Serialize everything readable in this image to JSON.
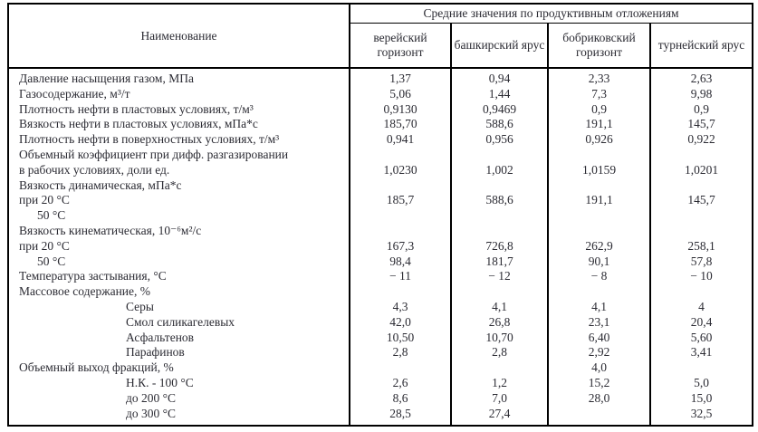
{
  "table": {
    "name_header": "Наименование",
    "group_header": "Средние значения по продуктивным отложениям",
    "columns": [
      "верейский горизонт",
      "башкирский ярус",
      "бобриковский горизонт",
      "турнейский ярус"
    ],
    "rows": [
      {
        "label": "Давление насыщения газом, МПа",
        "indent": 0,
        "values": [
          "1,37",
          "0,94",
          "2,33",
          "2,63"
        ]
      },
      {
        "label": "Газосодержание, м³/т",
        "indent": 0,
        "values": [
          "5,06",
          "1,44",
          "7,3",
          "9,98"
        ]
      },
      {
        "label": "Плотность нефти в пластовых условиях, т/м³",
        "indent": 0,
        "values": [
          "0,9130",
          "0,9469",
          "0,9",
          "0,9"
        ]
      },
      {
        "label": "Вязкость нефти в пластовых условиях, мПа*с",
        "indent": 0,
        "values": [
          "185,70",
          "588,6",
          "191,1",
          "145,7"
        ]
      },
      {
        "label": "Плотность нефти в поверхностных условиях, т/м³",
        "indent": 0,
        "values": [
          "0,941",
          "0,956",
          "0,926",
          "0,922"
        ]
      },
      {
        "label": "Объемный коэффициент при дифф. разгазировании",
        "indent": 0,
        "values": [
          "",
          "",
          "",
          ""
        ]
      },
      {
        "label": "в рабочих условиях, доли ед.",
        "indent": 0,
        "values": [
          "1,0230",
          "1,002",
          "1,0159",
          "1,0201"
        ]
      },
      {
        "label": "Вязкость динамическая, мПа*с",
        "indent": 0,
        "values": [
          "",
          "",
          "",
          ""
        ]
      },
      {
        "label": "при 20 °С",
        "indent": 0,
        "values": [
          "185,7",
          "588,6",
          "191,1",
          "145,7"
        ]
      },
      {
        "label": "50 °С",
        "indent": 1,
        "values": [
          "",
          "",
          "",
          ""
        ]
      },
      {
        "label": "Вязкость кинематическая, 10⁻⁶м²/с",
        "indent": 0,
        "values": [
          "",
          "",
          "",
          ""
        ]
      },
      {
        "label": "при 20 °С",
        "indent": 0,
        "values": [
          "167,3",
          "726,8",
          "262,9",
          "258,1"
        ]
      },
      {
        "label": "50 °С",
        "indent": 1,
        "values": [
          "98,4",
          "181,7",
          "90,1",
          "57,8"
        ]
      },
      {
        "label": "Температура застывания, °С",
        "indent": 0,
        "values": [
          "− 11",
          "− 12",
          "− 8",
          "− 10"
        ]
      },
      {
        "label": "Массовое содержание, %",
        "indent": 0,
        "values": [
          "",
          "",
          "",
          ""
        ]
      },
      {
        "label": "Серы",
        "indent": 2,
        "values": [
          "4,3",
          "4,1",
          "4,1",
          "4"
        ]
      },
      {
        "label": "Смол силикагелевых",
        "indent": 2,
        "values": [
          "42,0",
          "26,8",
          "23,1",
          "20,4"
        ]
      },
      {
        "label": "Асфальтенов",
        "indent": 2,
        "values": [
          "10,50",
          "10,70",
          "6,40",
          "5,60"
        ]
      },
      {
        "label": "Парафинов",
        "indent": 2,
        "values": [
          "2,8",
          "2,8",
          "2,92",
          "3,41"
        ]
      },
      {
        "label": "Объемный выход фракций, %",
        "indent": 0,
        "values": [
          "",
          "",
          "4,0",
          ""
        ]
      },
      {
        "label": "Н.К. - 100 °С",
        "indent": 2,
        "values": [
          "2,6",
          "1,2",
          "15,2",
          "5,0"
        ]
      },
      {
        "label": "до 200 °С",
        "indent": 2,
        "values": [
          "8,6",
          "7,0",
          "28,0",
          "15,0"
        ]
      },
      {
        "label": "до 300 °С",
        "indent": 2,
        "values": [
          "28,5",
          "27,4",
          "",
          "32,5"
        ]
      }
    ]
  }
}
